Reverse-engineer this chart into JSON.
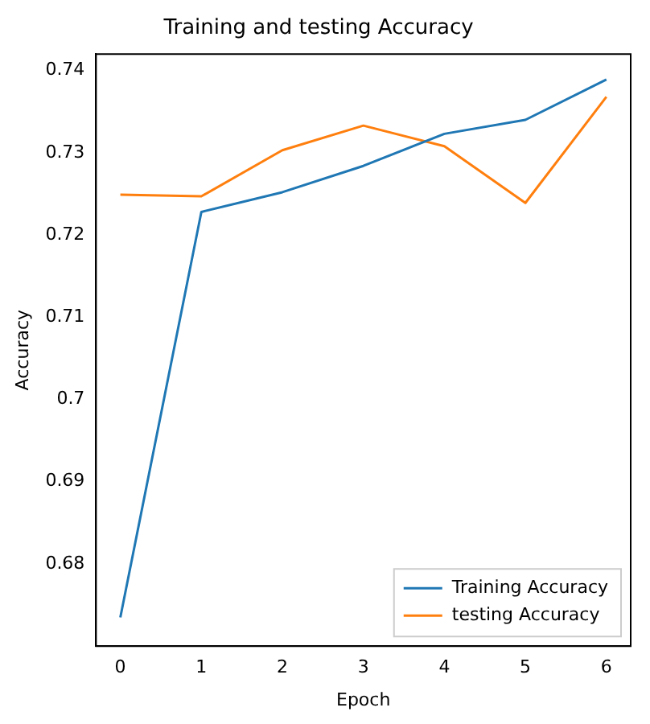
{
  "chart_data": {
    "type": "line",
    "title": "Training and testing Accuracy",
    "xlabel": "Epoch",
    "ylabel": "Accuracy",
    "x": [
      0,
      1,
      2,
      3,
      4,
      5,
      6
    ],
    "series": [
      {
        "name": "Training Accuracy",
        "color": "#1f77b4",
        "values": [
          0.6735,
          0.7228,
          0.7252,
          0.7284,
          0.7323,
          0.734,
          0.7389
        ]
      },
      {
        "name": "testing Accuracy",
        "color": "#ff7f0e",
        "values": [
          0.7249,
          0.7247,
          0.7303,
          0.7333,
          0.7308,
          0.7239,
          0.7368
        ]
      }
    ],
    "xlim": [
      -0.3,
      6.3
    ],
    "xticks": [
      0,
      1,
      2,
      3,
      4,
      5,
      6
    ],
    "ylim": [
      0.67,
      0.742
    ],
    "yticks": [
      0.68,
      0.69,
      0.7,
      0.71,
      0.72,
      0.73,
      0.74
    ],
    "grid": false,
    "legend": "bottom right",
    "marker": "none",
    "line_style": "solid"
  }
}
